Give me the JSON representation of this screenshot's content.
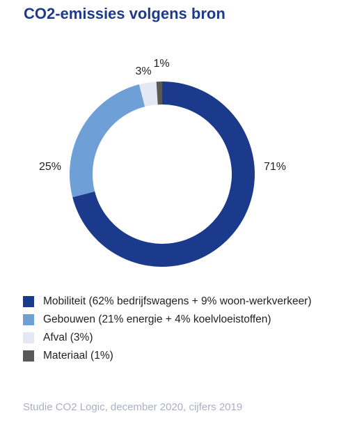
{
  "chart_data": {
    "type": "donut",
    "title": "CO2-emissies volgens bron",
    "categories": [
      "Mobiliteit  (62% bedrijfswagens + 9% woon-werkverkeer)",
      "Gebouwen (21% energie + 4% koelvloeistoffen)",
      "Afval (3%)",
      "Materiaal (1%)"
    ],
    "values": [
      71,
      25,
      3,
      1
    ],
    "value_labels": [
      "71%",
      "25%",
      "3%",
      "1%"
    ],
    "colors": [
      "#1b3a8b",
      "#6e9fd6",
      "#e4e8f3",
      "#595959"
    ],
    "source": "Studie CO2 Logic, december 2020, cijfers 2019"
  }
}
